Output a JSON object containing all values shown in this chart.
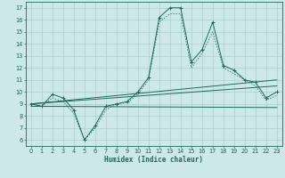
{
  "xlabel": "Humidex (Indice chaleur)",
  "xlim": [
    -0.5,
    23.5
  ],
  "ylim": [
    5.5,
    17.5
  ],
  "xticks": [
    0,
    1,
    2,
    3,
    4,
    5,
    6,
    7,
    8,
    9,
    10,
    11,
    12,
    13,
    14,
    15,
    16,
    17,
    18,
    19,
    20,
    21,
    22,
    23
  ],
  "yticks": [
    6,
    7,
    8,
    9,
    10,
    11,
    12,
    13,
    14,
    15,
    16,
    17
  ],
  "bg_color": "#cce8e8",
  "line_color": "#1a6b5a",
  "grid_color": "#aacfcf",
  "main_x": [
    0,
    1,
    2,
    3,
    4,
    5,
    6,
    7,
    8,
    9,
    10,
    11,
    12,
    13,
    14,
    15,
    16,
    17,
    18,
    19,
    20,
    21,
    22,
    23
  ],
  "main_y": [
    9,
    8.8,
    9.8,
    9.5,
    8.5,
    6.0,
    7.2,
    8.8,
    9.0,
    9.2,
    10.0,
    11.2,
    16.2,
    17.0,
    17.0,
    12.5,
    13.5,
    15.8,
    12.2,
    11.8,
    11.0,
    10.8,
    9.5,
    10.0
  ],
  "dotted_x": [
    0,
    1,
    2,
    3,
    4,
    5,
    6,
    7,
    8,
    9,
    10,
    11,
    12,
    13,
    14,
    15,
    16,
    17,
    18,
    19,
    20,
    21,
    22,
    23
  ],
  "dotted_y": [
    9,
    8.8,
    9.5,
    9.2,
    8.2,
    6.0,
    7.0,
    8.5,
    9.0,
    9.1,
    9.8,
    11.0,
    15.8,
    16.5,
    16.5,
    12.0,
    13.2,
    15.0,
    12.0,
    11.5,
    11.0,
    10.5,
    9.3,
    9.7
  ],
  "refline1_x": [
    0,
    23
  ],
  "refline1_y": [
    9.0,
    11.0
  ],
  "refline2_x": [
    0,
    23
  ],
  "refline2_y": [
    8.8,
    8.7
  ],
  "refline3_x": [
    0,
    23
  ],
  "refline3_y": [
    9.0,
    10.5
  ]
}
